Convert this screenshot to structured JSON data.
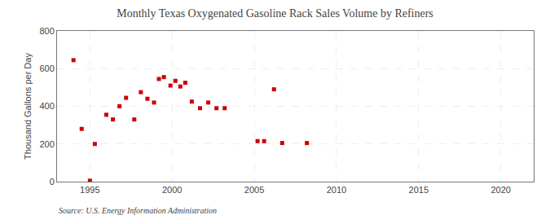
{
  "chart_data": {
    "type": "scatter",
    "title": "Monthly Texas Oxygenated Gasoline Rack Sales Volume by Refiners",
    "ylabel": "Thousand Gallons per Day",
    "annotation": "Source: U.S. Energy Information Administration",
    "x": [
      1994.0,
      1994.5,
      1995.0,
      1995.3,
      1996.0,
      1996.4,
      1996.8,
      1997.2,
      1997.7,
      1998.1,
      1998.5,
      1998.9,
      1999.2,
      1999.5,
      1999.9,
      2000.2,
      2000.5,
      2000.8,
      2001.2,
      2001.7,
      2002.2,
      2002.7,
      2003.2,
      2005.2,
      2005.6,
      2006.2,
      2006.7,
      2008.2
    ],
    "values": [
      645,
      280,
      5,
      200,
      355,
      330,
      400,
      445,
      330,
      475,
      440,
      420,
      545,
      555,
      510,
      535,
      505,
      525,
      425,
      390,
      420,
      390,
      390,
      215,
      215,
      490,
      205,
      205
    ],
    "color": "#cc0000",
    "marker": "square",
    "xlim": [
      1993,
      2022
    ],
    "ylim": [
      0,
      800
    ],
    "xticks": [
      1995,
      2000,
      2005,
      2010,
      2015,
      2020
    ],
    "yticks": [
      0,
      200,
      400,
      600,
      800
    ],
    "grid": true
  }
}
